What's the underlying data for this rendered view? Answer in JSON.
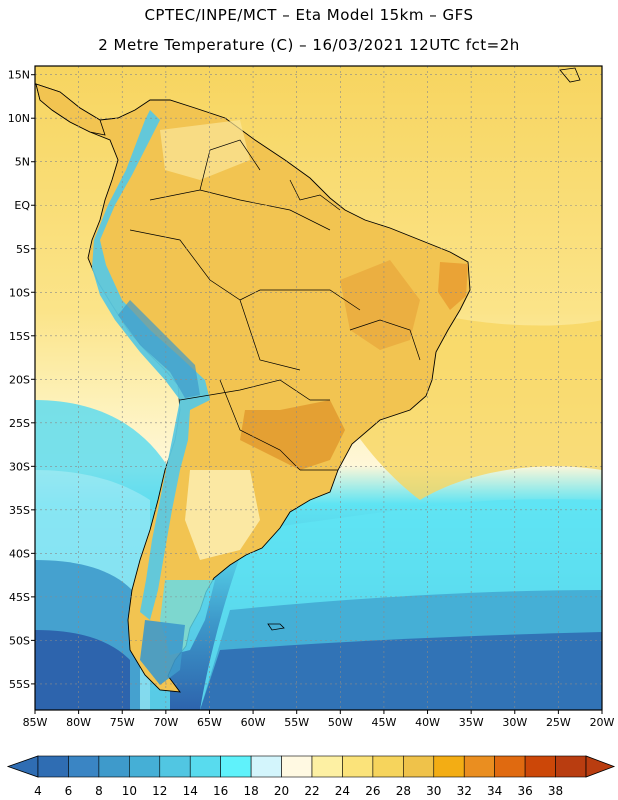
{
  "title": {
    "line1": "CPTEC/INPE/MCT –  Eta Model 15km – GFS",
    "line2": "2 Metre Temperature (C) – 16/03/2021 12UTC fct=2h"
  },
  "map": {
    "region": "South America",
    "lon_range": [
      -85,
      -20
    ],
    "lat_range": [
      -58,
      16
    ],
    "x_ticks": [
      "85W",
      "80W",
      "75W",
      "70W",
      "65W",
      "60W",
      "55W",
      "50W",
      "45W",
      "40W",
      "35W",
      "30W",
      "25W",
      "20W"
    ],
    "y_ticks": [
      "15N",
      "10N",
      "5N",
      "EQ",
      "5S",
      "10S",
      "15S",
      "20S",
      "25S",
      "30S",
      "35S",
      "40S",
      "45S",
      "50S",
      "55S"
    ]
  },
  "legend": {
    "values": [
      "4",
      "6",
      "8",
      "10",
      "12",
      "14",
      "16",
      "18",
      "20",
      "22",
      "24",
      "26",
      "28",
      "30",
      "32",
      "34",
      "36",
      "38"
    ],
    "colors": [
      "#2f6db3",
      "#3a85c4",
      "#3e9acb",
      "#45afd6",
      "#51c6e2",
      "#58dbee",
      "#5ff2fb",
      "#d3f5fc",
      "#fff9e2",
      "#fdf0a3",
      "#fbe37a",
      "#f6d45c",
      "#efc24a",
      "#f3ad14",
      "#ea8e20",
      "#e06a10",
      "#cc4708",
      "#b93d10"
    ],
    "left_arrow_color": "#2f6db3",
    "right_arrow_color": "#b93d10"
  },
  "colors": {
    "ocean_warm": "#f5cf5a",
    "ocean_mid": "#fbe79a",
    "ocean_cool": "#5fdcef",
    "ocean_cold": "#2d66b0",
    "land_warm": "#f0c050",
    "land_hot": "#e39a2a",
    "andes": "#5bc8e0"
  }
}
